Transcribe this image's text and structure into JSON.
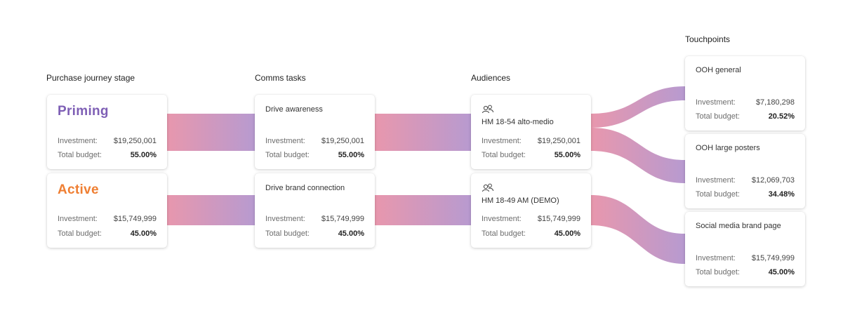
{
  "columns": {
    "stage": "Purchase journey stage",
    "comms": "Comms tasks",
    "audiences": "Audiences",
    "touchpoints": "Touchpoints"
  },
  "labels": {
    "investment": "Investment:",
    "total_budget": "Total budget:"
  },
  "colors": {
    "priming": "#7e5fb5",
    "active": "#ef7f33",
    "flow_pink": "#e897ad",
    "flow_purple": "#b79ad0"
  },
  "stages": [
    {
      "name": "Priming",
      "investment": "$19,250,001",
      "budget": "55.00%"
    },
    {
      "name": "Active",
      "investment": "$15,749,999",
      "budget": "45.00%"
    }
  ],
  "comms_tasks": [
    {
      "name": "Drive awareness",
      "investment": "$19,250,001",
      "budget": "55.00%"
    },
    {
      "name": "Drive brand connection",
      "investment": "$15,749,999",
      "budget": "45.00%"
    }
  ],
  "audiences": [
    {
      "icon": "audience-group-icon",
      "name": "HM 18-54 alto-medio",
      "investment": "$19,250,001",
      "budget": "55.00%"
    },
    {
      "icon": "audience-group-icon",
      "name": "HM 18-49 AM (DEMO)",
      "investment": "$15,749,999",
      "budget": "45.00%"
    }
  ],
  "touchpoints": [
    {
      "name": "OOH general",
      "investment": "$7,180,298",
      "budget": "20.52%"
    },
    {
      "name": "OOH large posters",
      "investment": "$12,069,703",
      "budget": "34.48%"
    },
    {
      "name": "Social media brand page",
      "investment": "$15,749,999",
      "budget": "45.00%"
    }
  ]
}
